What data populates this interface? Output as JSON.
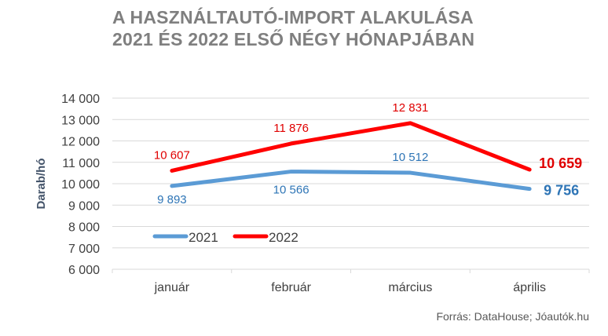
{
  "chart_data": {
    "type": "line",
    "title": [
      "A HASZNÁLTAUTÓ-IMPORT ALAKULÁSA",
      "2021 ÉS 2022 ELSŐ NÉGY HÓNAPJÁBAN"
    ],
    "xlabel": "",
    "ylabel": "Darab/hó",
    "ylim": [
      6000,
      14000
    ],
    "yticks": [
      6000,
      7000,
      8000,
      9000,
      10000,
      11000,
      12000,
      13000,
      14000
    ],
    "ytick_labels": [
      "6 000",
      "7 000",
      "8 000",
      "9 000",
      "10 000",
      "11 000",
      "12 000",
      "13 000",
      "14 000"
    ],
    "categories": [
      "január",
      "február",
      "március",
      "április"
    ],
    "series": [
      {
        "name": "2021",
        "color": "#5b9bd5",
        "label_color": "#2e75b6",
        "values": [
          9893,
          10566,
          10512,
          9756
        ],
        "labels": [
          "9 893",
          "10 566",
          "10 512",
          "9 756"
        ]
      },
      {
        "name": "2022",
        "color": "#ff0000",
        "label_color": "#e00000",
        "values": [
          10607,
          11876,
          12831,
          10659
        ],
        "labels": [
          "10 607",
          "11 876",
          "12 831",
          "10 659"
        ]
      }
    ],
    "grid": true,
    "legend": "bottom-left inside",
    "source": "Forrás: DataHouse; Jóautók.hu"
  }
}
